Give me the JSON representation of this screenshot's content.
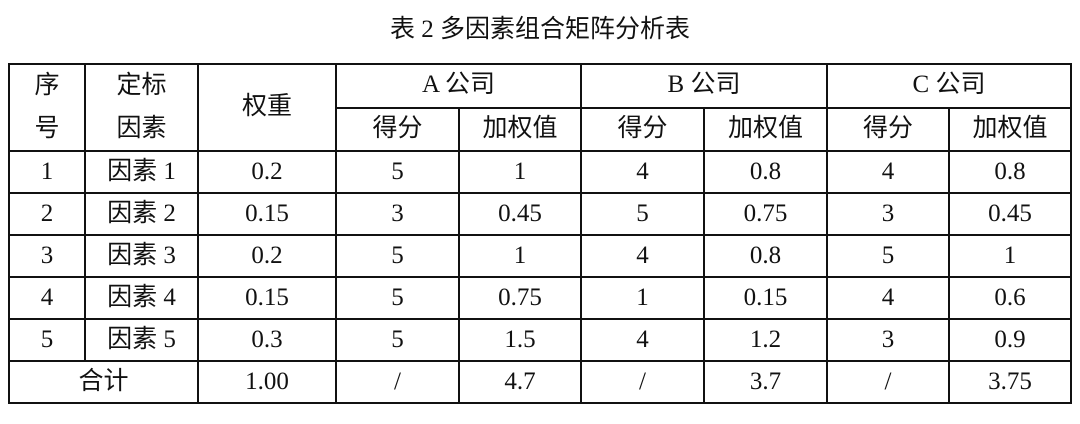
{
  "title": "表 2  多因素组合矩阵分析表",
  "table": {
    "headers": {
      "index": "序号",
      "factor": "定标因素",
      "weight": "权重",
      "companies": [
        "A 公司",
        "B 公司",
        "C 公司"
      ],
      "score": "得分",
      "weighted": "加权值"
    },
    "rows": [
      {
        "no": "1",
        "factor": "因素 1",
        "weight": "0.2",
        "cells": [
          "5",
          "1",
          "4",
          "0.8",
          "4",
          "0.8"
        ]
      },
      {
        "no": "2",
        "factor": "因素 2",
        "weight": "0.15",
        "cells": [
          "3",
          "0.45",
          "5",
          "0.75",
          "3",
          "0.45"
        ]
      },
      {
        "no": "3",
        "factor": "因素 3",
        "weight": "0.2",
        "cells": [
          "5",
          "1",
          "4",
          "0.8",
          "5",
          "1"
        ]
      },
      {
        "no": "4",
        "factor": "因素 4",
        "weight": "0.15",
        "cells": [
          "5",
          "0.75",
          "1",
          "0.15",
          "4",
          "0.6"
        ]
      },
      {
        "no": "5",
        "factor": "因素 5",
        "weight": "0.3",
        "cells": [
          "5",
          "1.5",
          "4",
          "1.2",
          "3",
          "0.9"
        ]
      }
    ],
    "total": {
      "label": "合计",
      "weight": "1.00",
      "cells": [
        "/",
        "4.7",
        "/",
        "3.7",
        "/",
        "3.75"
      ]
    }
  }
}
